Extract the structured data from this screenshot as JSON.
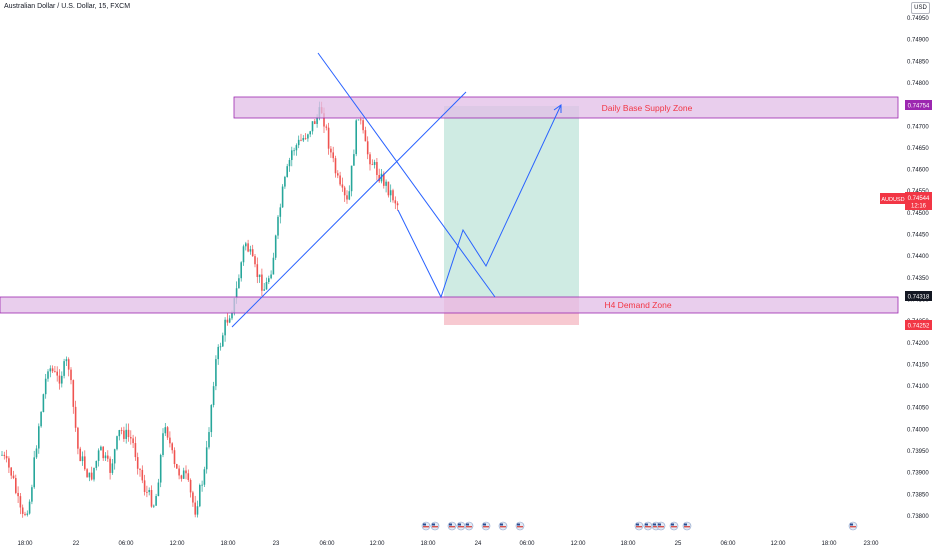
{
  "header": {
    "symbol_title": "Australian Dollar / U.S. Dollar, 15, FXCM",
    "currency_button": "USD"
  },
  "price_axis": {
    "labels": [
      "0.74950",
      "0.74900",
      "0.74850",
      "0.74800",
      "0.74750",
      "0.74700",
      "0.74650",
      "0.74600",
      "0.74550",
      "0.74500",
      "0.74450",
      "0.74400",
      "0.74350",
      "0.74300",
      "0.74250",
      "0.74200",
      "0.74150",
      "0.74100",
      "0.74050",
      "0.74000",
      "0.73950",
      "0.73900",
      "0.73850",
      "0.73800"
    ],
    "supply_tag": "0.74754",
    "symbol_tag": "AUDUSD",
    "last_price": "0.74544",
    "countdown": "12:16",
    "demand_tag": "0.74318",
    "stop_tag": "0.74252"
  },
  "time_axis": {
    "labels": [
      "18:00",
      "22",
      "06:00",
      "12:00",
      "18:00",
      "23",
      "06:00",
      "12:00",
      "18:00",
      "24",
      "06:00",
      "12:00",
      "18:00",
      "25",
      "06:00",
      "12:00",
      "18:00",
      "23:00"
    ]
  },
  "zones": {
    "supply_label": "Daily Base Supply Zone",
    "demand_label": "H4 Demand Zone"
  },
  "colors": {
    "zone_fill": "#e1bee7",
    "zone_border": "#9c27b0",
    "zone_text": "#f23645",
    "up": "#26a69a",
    "down": "#ef5350",
    "drawing": "#2962ff",
    "target_fill": "#cfebe3",
    "stop_fill": "#f7c9d1",
    "tag_red": "#f23645",
    "tag_dark": "#131722"
  }
}
